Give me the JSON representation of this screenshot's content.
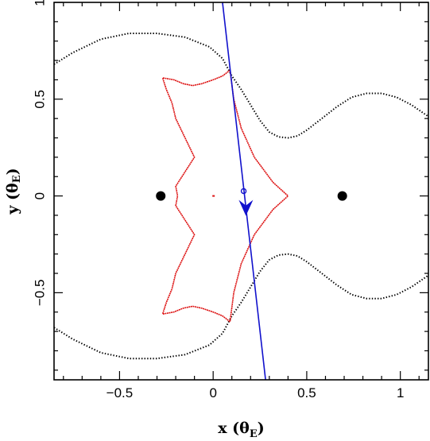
{
  "chart_data": {
    "type": "line",
    "xlim": [
      -0.85,
      1.15
    ],
    "ylim": [
      -0.95,
      1.0
    ],
    "x_ticks": [
      {
        "value": -0.5,
        "label": "−0.5"
      },
      {
        "value": 0,
        "label": "0"
      },
      {
        "value": 0.5,
        "label": "0.5"
      },
      {
        "value": 1,
        "label": "1"
      }
    ],
    "y_ticks": [
      {
        "value": 1,
        "label": "1"
      },
      {
        "value": 0.5,
        "label": "0.5"
      },
      {
        "value": 0,
        "label": "0"
      },
      {
        "value": -0.5,
        "label": "−0.5"
      }
    ],
    "xlabel": {
      "main": "x (θ",
      "sub": "E",
      "close": ")"
    },
    "ylabel": {
      "main": "y (θ",
      "sub": "E",
      "close": ")"
    },
    "colors": {
      "critical_curve": "#000000",
      "caustic": "#dd1111",
      "trajectory": "#1111cc",
      "axes": "#000000"
    },
    "critical_curve_points": [
      [
        -0.85,
        0.68
      ],
      [
        -0.75,
        0.74
      ],
      [
        -0.6,
        0.81
      ],
      [
        -0.45,
        0.84
      ],
      [
        -0.3,
        0.84
      ],
      [
        -0.15,
        0.82
      ],
      [
        -0.02,
        0.77
      ],
      [
        0.05,
        0.71
      ],
      [
        0.1,
        0.62
      ],
      [
        0.15,
        0.55
      ],
      [
        0.2,
        0.47
      ],
      [
        0.25,
        0.39
      ],
      [
        0.3,
        0.33
      ],
      [
        0.35,
        0.305
      ],
      [
        0.4,
        0.3
      ],
      [
        0.45,
        0.31
      ],
      [
        0.5,
        0.34
      ],
      [
        0.58,
        0.4
      ],
      [
        0.66,
        0.46
      ],
      [
        0.74,
        0.51
      ],
      [
        0.82,
        0.53
      ],
      [
        0.9,
        0.53
      ],
      [
        0.98,
        0.51
      ],
      [
        1.06,
        0.47
      ],
      [
        1.15,
        0.41
      ]
    ],
    "caustic_points": [
      [
        0.09,
        0.65
      ],
      [
        0.05,
        0.62
      ],
      [
        0.0,
        0.6
      ],
      [
        -0.06,
        0.58
      ],
      [
        -0.11,
        0.57
      ],
      [
        -0.16,
        0.58
      ],
      [
        -0.21,
        0.6
      ],
      [
        -0.27,
        0.61
      ],
      [
        -0.25,
        0.55
      ],
      [
        -0.22,
        0.48
      ],
      [
        -0.2,
        0.4
      ],
      [
        -0.1,
        0.2
      ],
      [
        -0.2,
        0.05
      ],
      [
        -0.19,
        0.0
      ],
      [
        -0.2,
        -0.05
      ],
      [
        -0.1,
        -0.2
      ],
      [
        -0.2,
        -0.4
      ],
      [
        -0.22,
        -0.48
      ],
      [
        -0.25,
        -0.55
      ],
      [
        -0.27,
        -0.61
      ],
      [
        -0.21,
        -0.6
      ],
      [
        -0.16,
        -0.58
      ],
      [
        -0.11,
        -0.57
      ],
      [
        -0.06,
        -0.58
      ],
      [
        0.0,
        -0.6
      ],
      [
        0.05,
        -0.62
      ],
      [
        0.09,
        -0.65
      ],
      [
        0.11,
        -0.5
      ],
      [
        0.15,
        -0.35
      ],
      [
        0.22,
        -0.2
      ],
      [
        0.32,
        -0.07
      ],
      [
        0.4,
        0.0
      ],
      [
        0.32,
        0.07
      ],
      [
        0.22,
        0.2
      ],
      [
        0.15,
        0.35
      ],
      [
        0.11,
        0.5
      ],
      [
        0.09,
        0.65
      ]
    ],
    "lens_masses": [
      {
        "x": -0.28,
        "y": 0.0
      },
      {
        "x": 0.69,
        "y": 0.0
      }
    ],
    "trajectory_line": [
      [
        0.05,
        1.0
      ],
      [
        0.28,
        -0.95
      ]
    ],
    "source_marker": {
      "x": 0.163,
      "y": 0.025
    },
    "direction_arrow": {
      "x": 0.175,
      "y": -0.07,
      "direction": "down"
    },
    "center_mark": {
      "x": 0.0,
      "y": 0.0
    }
  }
}
